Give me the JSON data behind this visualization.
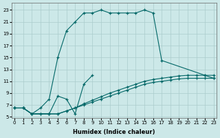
{
  "background_color": "#cce8e8",
  "grid_color": "#aacccc",
  "line_color": "#006666",
  "xlabel": "Humidex (Indice chaleur)",
  "xlim": [
    -0.3,
    23.3
  ],
  "ylim": [
    4.8,
    24.2
  ],
  "xticks": [
    0,
    1,
    2,
    3,
    4,
    5,
    6,
    7,
    8,
    9,
    10,
    11,
    12,
    13,
    14,
    15,
    16,
    17,
    18,
    19,
    20,
    21,
    22,
    23
  ],
  "yticks": [
    5,
    7,
    9,
    11,
    13,
    15,
    17,
    19,
    21,
    23
  ],
  "series": [
    {
      "x": [
        0,
        1,
        2,
        3,
        4,
        5,
        6,
        7,
        8,
        9,
        10,
        11,
        12,
        13,
        14,
        15,
        16,
        17,
        22,
        23
      ],
      "y": [
        6.5,
        6.5,
        5.5,
        6.5,
        8.0,
        15.0,
        19.5,
        21.0,
        22.5,
        22.5,
        23.0,
        22.5,
        22.5,
        22.5,
        22.5,
        23.0,
        22.5,
        14.5,
        12.0,
        11.5
      ]
    },
    {
      "x": [
        0,
        1,
        2,
        4,
        5,
        6,
        7,
        8,
        9
      ],
      "y": [
        6.5,
        6.5,
        5.5,
        5.5,
        8.5,
        8.0,
        5.5,
        10.5,
        12.0
      ]
    },
    {
      "x": [
        0,
        1,
        2,
        3,
        4,
        5,
        6,
        7,
        8,
        9,
        10,
        11,
        12,
        13,
        14,
        15,
        16,
        17,
        18,
        19,
        20,
        21,
        22,
        23
      ],
      "y": [
        6.5,
        6.5,
        5.5,
        5.5,
        5.5,
        5.5,
        6.0,
        6.5,
        7.0,
        7.5,
        8.0,
        8.5,
        9.0,
        9.5,
        10.0,
        10.5,
        10.8,
        11.0,
        11.2,
        11.4,
        11.5,
        11.5,
        11.5,
        11.5
      ]
    },
    {
      "x": [
        0,
        1,
        2,
        3,
        4,
        5,
        6,
        7,
        8,
        9,
        10,
        11,
        12,
        13,
        14,
        15,
        16,
        17,
        18,
        19,
        20,
        21,
        22,
        23
      ],
      "y": [
        6.5,
        6.5,
        5.5,
        5.5,
        5.5,
        5.5,
        6.0,
        6.5,
        7.2,
        7.8,
        8.4,
        9.0,
        9.5,
        10.0,
        10.5,
        11.0,
        11.3,
        11.5,
        11.7,
        11.9,
        12.0,
        12.0,
        12.0,
        12.0
      ]
    }
  ]
}
